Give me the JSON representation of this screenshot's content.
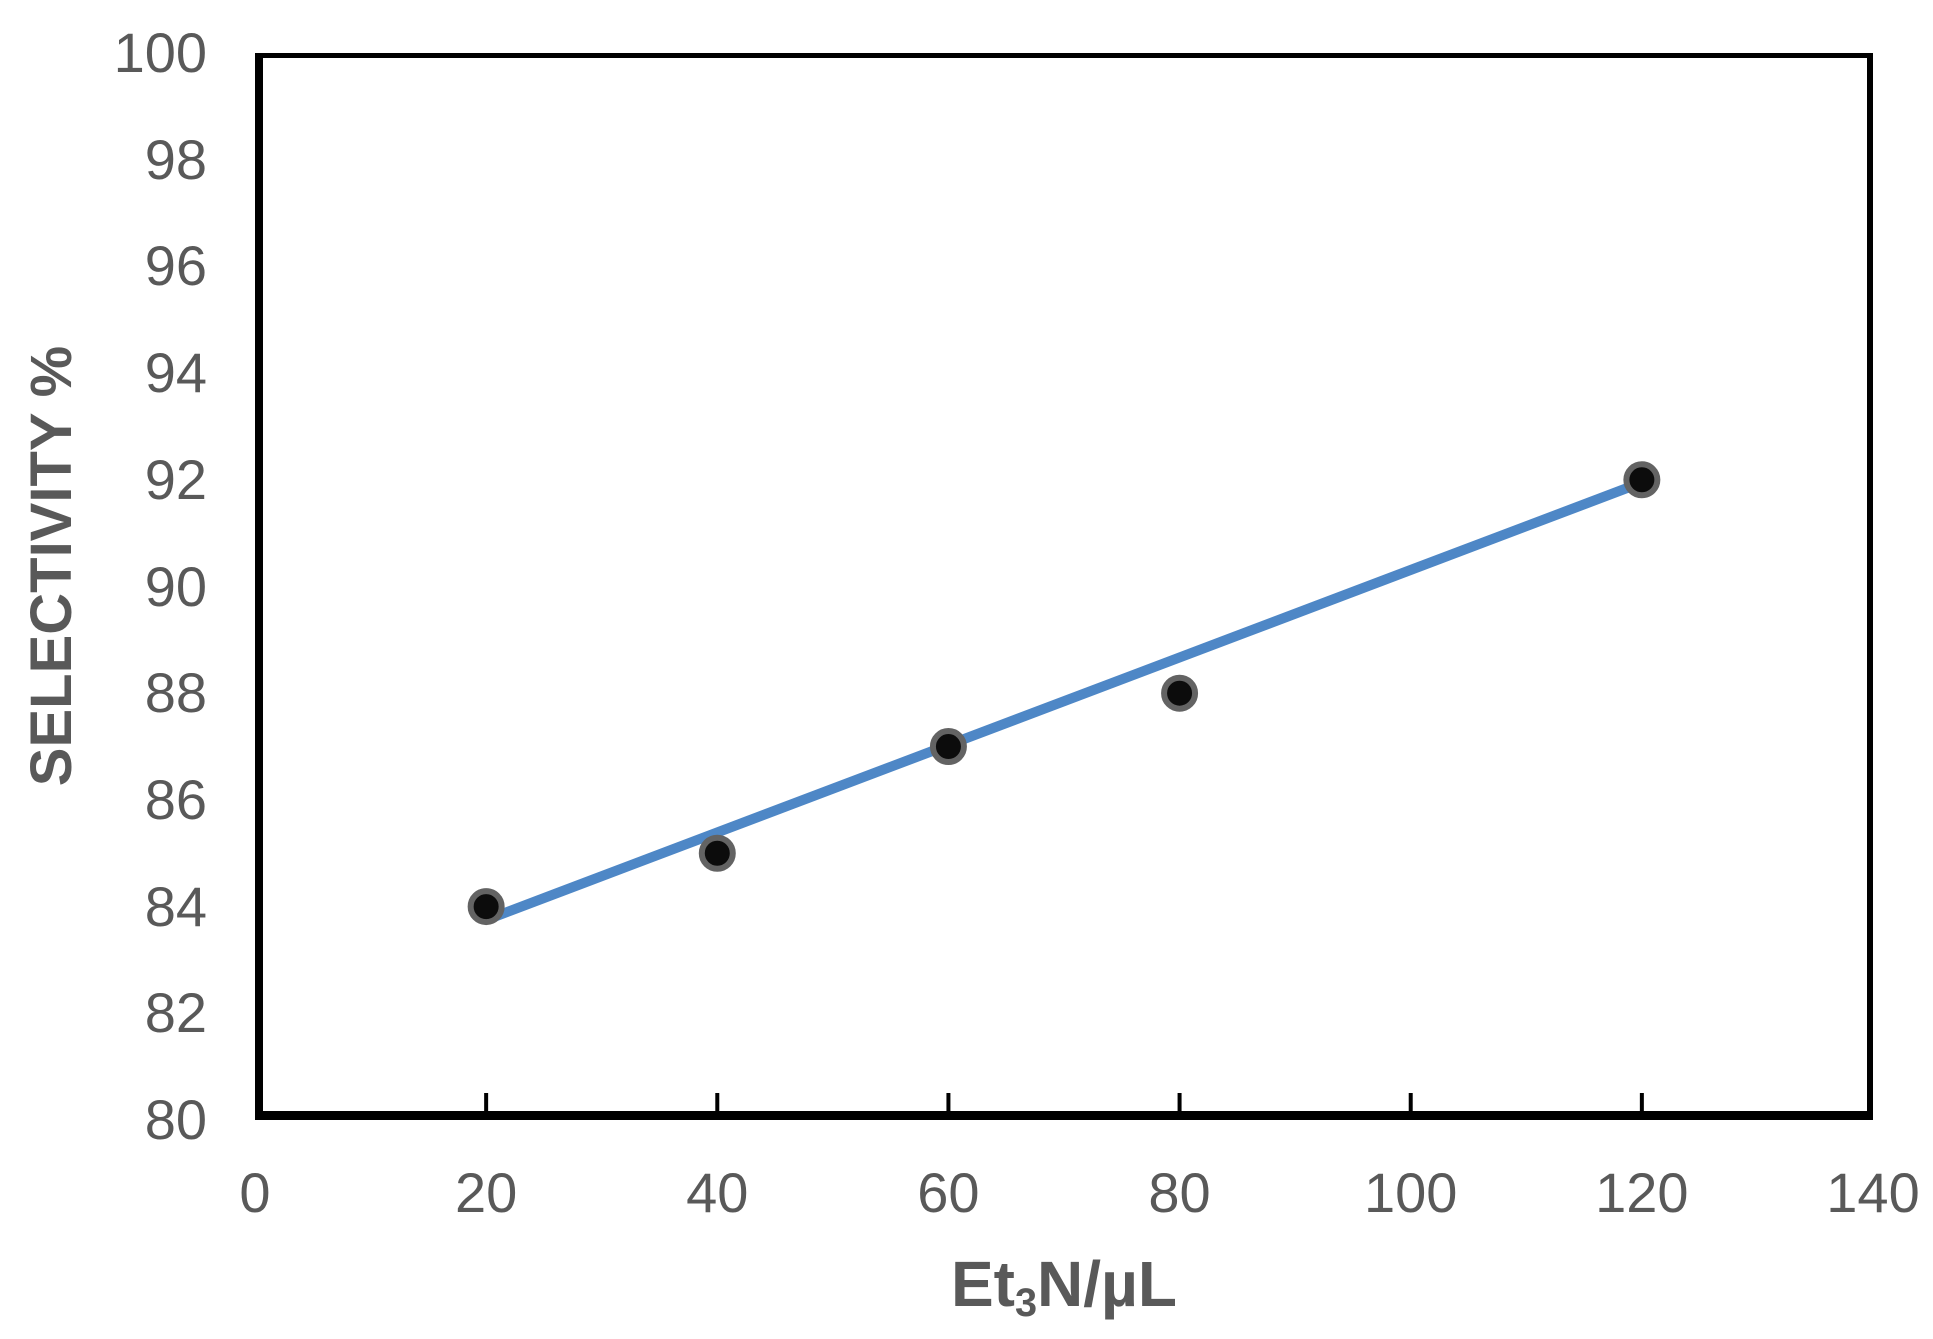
{
  "chart_data": {
    "type": "scatter",
    "title": "",
    "xlabel": "Et3N/µL",
    "xlabel_rich": [
      {
        "text": "Et",
        "sub": false
      },
      {
        "text": "3",
        "sub": true
      },
      {
        "text": "N/µL",
        "sub": false
      }
    ],
    "ylabel": "SELECTIVITY %",
    "x": [
      20,
      40,
      60,
      80,
      120
    ],
    "y": [
      84,
      85,
      87,
      88,
      92
    ],
    "xlim": [
      0,
      140
    ],
    "ylim": [
      80,
      100
    ],
    "x_ticks": [
      0,
      20,
      40,
      60,
      80,
      100,
      120,
      140
    ],
    "y_ticks": [
      100,
      98,
      96,
      94,
      92,
      90,
      88,
      86,
      84,
      82,
      80
    ],
    "grid": false,
    "legend": false,
    "trendline": {
      "x1": 20,
      "y1": 83.75,
      "x2": 120,
      "y2": 91.95
    },
    "colors": {
      "trendline": "#4e87c6",
      "marker_fill": "#0c0c0c",
      "marker_ring": "#636363",
      "axis": "#000000",
      "tick_label": "#595959",
      "title": "#595959"
    }
  }
}
